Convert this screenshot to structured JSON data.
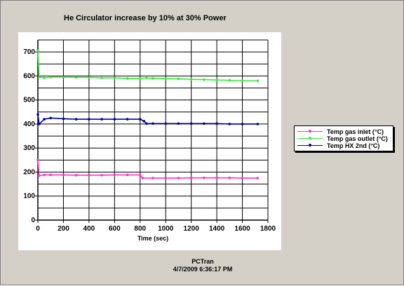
{
  "chart_data": {
    "type": "line",
    "title": "He Circulator increase by 10% at 30% Power",
    "xlabel": "Time (sec)",
    "ylabel": "",
    "xlim": [
      0,
      1800
    ],
    "ylim": [
      0,
      750
    ],
    "xticks": [
      0,
      200,
      400,
      600,
      800,
      1000,
      1200,
      1400,
      1600,
      1800
    ],
    "yticks": [
      100,
      200,
      300,
      400,
      500,
      600,
      700
    ],
    "grid": true,
    "legend_position": "right",
    "series": [
      {
        "name": "Temp gas inlet (°C)",
        "color": "#ff33cc",
        "x": [
          0,
          10,
          50,
          100,
          200,
          300,
          400,
          500,
          600,
          700,
          800,
          820,
          900,
          1000,
          1100,
          1200,
          1300,
          1400,
          1500,
          1600,
          1720
        ],
        "y": [
          250,
          185,
          188,
          188,
          188,
          187,
          187,
          187,
          188,
          188,
          188,
          175,
          175,
          175,
          175,
          176,
          176,
          176,
          176,
          175,
          175
        ]
      },
      {
        "name": "Temp gas outlet (°C)",
        "color": "#33ee33",
        "x": [
          0,
          10,
          50,
          100,
          200,
          300,
          400,
          500,
          600,
          700,
          800,
          850,
          900,
          1000,
          1100,
          1200,
          1300,
          1400,
          1500,
          1600,
          1720
        ],
        "y": [
          705,
          595,
          592,
          595,
          595,
          594,
          594,
          592,
          592,
          590,
          590,
          592,
          590,
          590,
          588,
          586,
          585,
          583,
          582,
          580,
          580
        ]
      },
      {
        "name": "Temp HX 2nd (°C)",
        "color": "#0000aa",
        "x": [
          0,
          10,
          50,
          100,
          200,
          300,
          400,
          500,
          600,
          700,
          800,
          830,
          850,
          900,
          1000,
          1100,
          1200,
          1300,
          1400,
          1500,
          1600,
          1720
        ],
        "y": [
          440,
          400,
          420,
          425,
          422,
          420,
          420,
          420,
          420,
          420,
          420,
          412,
          402,
          402,
          402,
          402,
          402,
          402,
          402,
          400,
          400,
          400
        ]
      }
    ]
  },
  "footer": {
    "app": "PCTran",
    "timestamp": "4/7/2009 6:36:17 PM"
  }
}
